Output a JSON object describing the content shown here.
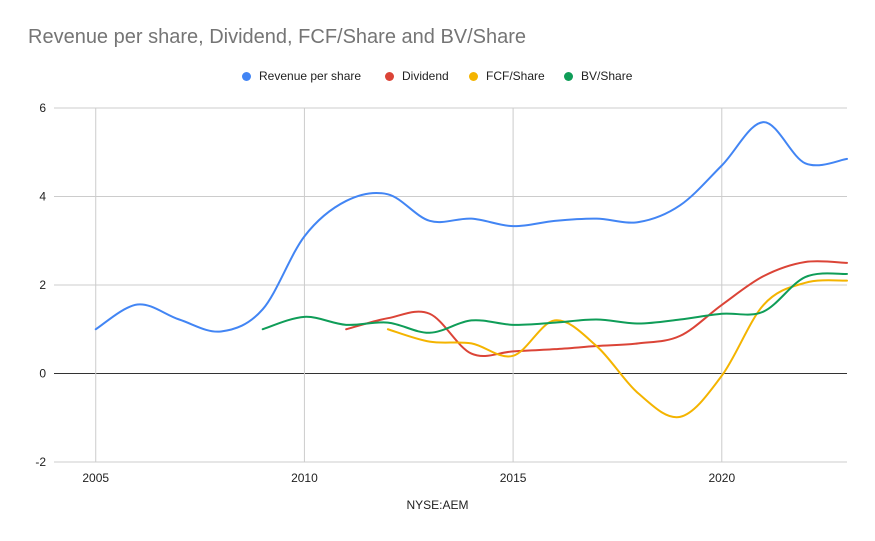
{
  "chart_data": {
    "type": "line",
    "title": "Revenue per share, Dividend, FCF/Share and BV/Share",
    "xlabel": "NYSE:AEM",
    "ylabel": "",
    "xlim": [
      2004,
      2023
    ],
    "ylim": [
      -2,
      6
    ],
    "x_ticks": [
      "2005",
      "2010",
      "2015",
      "2020"
    ],
    "y_ticks": [
      "6",
      "4",
      "2",
      "0",
      "-2"
    ],
    "grid": true,
    "legend_position": "top",
    "series": [
      {
        "name": "Revenue per share",
        "color": "#4285f4",
        "points": [
          [
            2005,
            1.0
          ],
          [
            2006,
            1.56
          ],
          [
            2007,
            1.22
          ],
          [
            2008,
            0.95
          ],
          [
            2009,
            1.45
          ],
          [
            2010,
            3.1
          ],
          [
            2011,
            3.9
          ],
          [
            2012,
            4.05
          ],
          [
            2013,
            3.45
          ],
          [
            2014,
            3.5
          ],
          [
            2015,
            3.33
          ],
          [
            2016,
            3.45
          ],
          [
            2017,
            3.5
          ],
          [
            2018,
            3.42
          ],
          [
            2019,
            3.8
          ],
          [
            2020,
            4.7
          ],
          [
            2021,
            5.68
          ],
          [
            2022,
            4.75
          ],
          [
            2023,
            4.85
          ]
        ]
      },
      {
        "name": "Dividend",
        "color": "#db4437",
        "points": [
          [
            2011,
            1.0
          ],
          [
            2012,
            1.25
          ],
          [
            2013,
            1.35
          ],
          [
            2014,
            0.45
          ],
          [
            2015,
            0.5
          ],
          [
            2016,
            0.55
          ],
          [
            2017,
            0.62
          ],
          [
            2018,
            0.68
          ],
          [
            2019,
            0.85
          ],
          [
            2020,
            1.55
          ],
          [
            2021,
            2.2
          ],
          [
            2022,
            2.52
          ],
          [
            2023,
            2.5
          ]
        ]
      },
      {
        "name": "FCF/Share",
        "color": "#f4b400",
        "points": [
          [
            2012,
            1.0
          ],
          [
            2013,
            0.72
          ],
          [
            2014,
            0.68
          ],
          [
            2015,
            0.4
          ],
          [
            2016,
            1.2
          ],
          [
            2017,
            0.62
          ],
          [
            2018,
            -0.45
          ],
          [
            2019,
            -0.98
          ],
          [
            2020,
            -0.05
          ],
          [
            2021,
            1.55
          ],
          [
            2022,
            2.05
          ],
          [
            2023,
            2.1
          ]
        ]
      },
      {
        "name": "BV/Share",
        "color": "#0f9d58",
        "points": [
          [
            2009,
            1.0
          ],
          [
            2010,
            1.28
          ],
          [
            2011,
            1.1
          ],
          [
            2012,
            1.15
          ],
          [
            2013,
            0.92
          ],
          [
            2014,
            1.2
          ],
          [
            2015,
            1.1
          ],
          [
            2016,
            1.15
          ],
          [
            2017,
            1.22
          ],
          [
            2018,
            1.13
          ],
          [
            2019,
            1.22
          ],
          [
            2020,
            1.35
          ],
          [
            2021,
            1.4
          ],
          [
            2022,
            2.18
          ],
          [
            2023,
            2.25
          ]
        ]
      }
    ]
  }
}
